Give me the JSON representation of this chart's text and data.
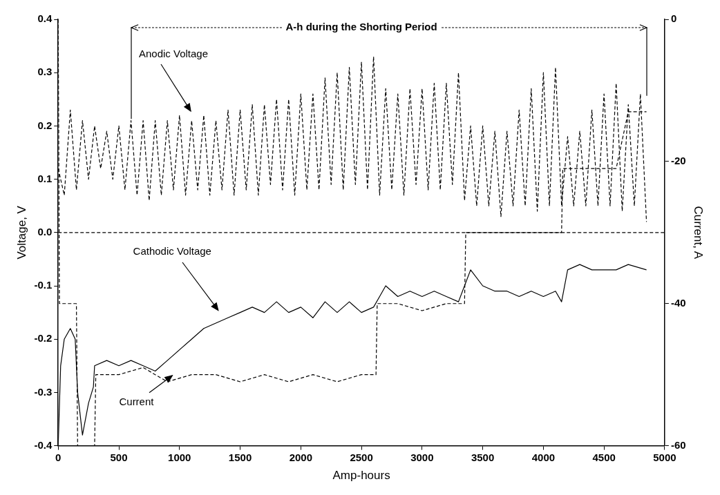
{
  "chart_data": {
    "type": "line",
    "xlabel": "Amp-hours",
    "ylabel": "Voltage, V",
    "y2label": "Current, A",
    "xlim": [
      0,
      5000
    ],
    "xticks": [
      0,
      500,
      1000,
      1500,
      2000,
      2500,
      3000,
      3500,
      4000,
      4500,
      5000
    ],
    "ylim": [
      -0.4,
      0.4
    ],
    "yticks": [
      -0.4,
      -0.3,
      -0.2,
      -0.1,
      {
        "value": 0,
        "label": "0.0"
      },
      0.1,
      0.2,
      0.3,
      0.4
    ],
    "y2lim": [
      -60,
      0
    ],
    "y2ticks": [
      -60,
      -40,
      -20,
      0
    ],
    "grid": false,
    "legend": false,
    "marker": "none",
    "series": [
      {
        "color": "#000000",
        "line_style": "dashed",
        "x": [
          0,
          50,
          100,
          150,
          200,
          250,
          300,
          350,
          400,
          450,
          500,
          550,
          600,
          650,
          700,
          750,
          800,
          850,
          900,
          950,
          1000,
          1050,
          1100,
          1150,
          1200,
          1250,
          1300,
          1350,
          1400,
          1450,
          1500,
          1550,
          1600,
          1650,
          1700,
          1750,
          1800,
          1850,
          1900,
          1950,
          2000,
          2050,
          2100,
          2150,
          2200,
          2250,
          2300,
          2350,
          2400,
          2450,
          2500,
          2550,
          2600,
          2650,
          2700,
          2750,
          2800,
          2850,
          2900,
          2950,
          3000,
          3050,
          3100,
          3150,
          3200,
          3250,
          3300,
          3350,
          3400,
          3450,
          3500,
          3550,
          3600,
          3650,
          3700,
          3750,
          3800,
          3850,
          3900,
          3950,
          4000,
          4050,
          4100,
          4150,
          4200,
          4250,
          4300,
          4350,
          4400,
          4450,
          4500,
          4550,
          4600,
          4650,
          4700,
          4750,
          4800,
          4850
        ],
        "values": [
          0.12,
          0.07,
          0.23,
          0.08,
          0.21,
          0.1,
          0.2,
          0.12,
          0.19,
          0.1,
          0.2,
          0.08,
          0.21,
          0.07,
          0.21,
          0.06,
          0.21,
          0.07,
          0.21,
          0.08,
          0.22,
          0.07,
          0.21,
          0.08,
          0.22,
          0.07,
          0.21,
          0.08,
          0.23,
          0.07,
          0.23,
          0.08,
          0.24,
          0.07,
          0.24,
          0.09,
          0.25,
          0.08,
          0.25,
          0.07,
          0.26,
          0.08,
          0.26,
          0.08,
          0.29,
          0.09,
          0.3,
          0.08,
          0.31,
          0.09,
          0.32,
          0.08,
          0.33,
          0.07,
          0.27,
          0.08,
          0.26,
          0.07,
          0.27,
          0.09,
          0.27,
          0.08,
          0.28,
          0.08,
          0.28,
          0.09,
          0.3,
          0.06,
          0.2,
          0.05,
          0.2,
          0.05,
          0.19,
          0.03,
          0.19,
          0.05,
          0.23,
          0.05,
          0.27,
          0.04,
          0.3,
          0.05,
          0.31,
          0.05,
          0.18,
          0.05,
          0.19,
          0.05,
          0.23,
          0.05,
          0.26,
          0.05,
          0.28,
          0.04,
          0.24,
          0.05,
          0.26,
          0.02
        ]
      },
      {
        "color": "#000000",
        "line_style": "solid",
        "x": [
          0,
          20,
          50,
          100,
          140,
          160,
          200,
          250,
          290,
          300,
          400,
          500,
          600,
          700,
          800,
          900,
          1000,
          1100,
          1200,
          1300,
          1400,
          1500,
          1600,
          1700,
          1800,
          1900,
          2000,
          2100,
          2200,
          2300,
          2400,
          2500,
          2600,
          2650,
          2700,
          2800,
          2900,
          3000,
          3100,
          3200,
          3300,
          3350,
          3400,
          3500,
          3600,
          3700,
          3800,
          3900,
          4000,
          4100,
          4150,
          4200,
          4300,
          4400,
          4500,
          4600,
          4700,
          4850
        ],
        "values": [
          -0.4,
          -0.25,
          -0.2,
          -0.18,
          -0.2,
          -0.3,
          -0.38,
          -0.32,
          -0.29,
          -0.25,
          -0.24,
          -0.25,
          -0.24,
          -0.25,
          -0.26,
          -0.24,
          -0.22,
          -0.2,
          -0.18,
          -0.17,
          -0.16,
          -0.15,
          -0.14,
          -0.15,
          -0.13,
          -0.15,
          -0.14,
          -0.16,
          -0.13,
          -0.15,
          -0.13,
          -0.15,
          -0.14,
          -0.12,
          -0.1,
          -0.12,
          -0.11,
          -0.12,
          -0.11,
          -0.12,
          -0.13,
          -0.1,
          -0.07,
          -0.1,
          -0.11,
          -0.11,
          -0.12,
          -0.11,
          -0.12,
          -0.11,
          -0.13,
          -0.07,
          -0.06,
          -0.07,
          -0.07,
          -0.07,
          -0.06,
          -0.07
        ]
      },
      {
        "color": "#000000",
        "line_style": "dashed",
        "axis": "y2",
        "x": [
          0,
          10,
          150,
          160,
          300,
          310,
          500,
          700,
          900,
          1100,
          1300,
          1500,
          1700,
          1900,
          2100,
          2300,
          2500,
          2620,
          2630,
          2800,
          3000,
          3200,
          3350,
          3360,
          3600,
          3800,
          4000,
          4150,
          4160,
          4400,
          4600,
          4700,
          4850
        ],
        "values": [
          0,
          -40,
          -40,
          -60,
          -60,
          -50,
          -50,
          -49,
          -51,
          -50,
          -50,
          -51,
          -50,
          -51,
          -50,
          -51,
          -50,
          -50,
          -40,
          -40,
          -41,
          -40,
          -40,
          -30,
          -30,
          -30,
          -30,
          -30,
          -21,
          -21,
          -21,
          -13,
          -13
        ]
      }
    ],
    "ref_lines": [
      {
        "axis": "y",
        "value": 0,
        "line_style": "dashed"
      }
    ],
    "annotations": [
      "A-h during the Shorting Period",
      "Anodic Voltage",
      "Cathodic Voltage",
      "Current"
    ]
  }
}
